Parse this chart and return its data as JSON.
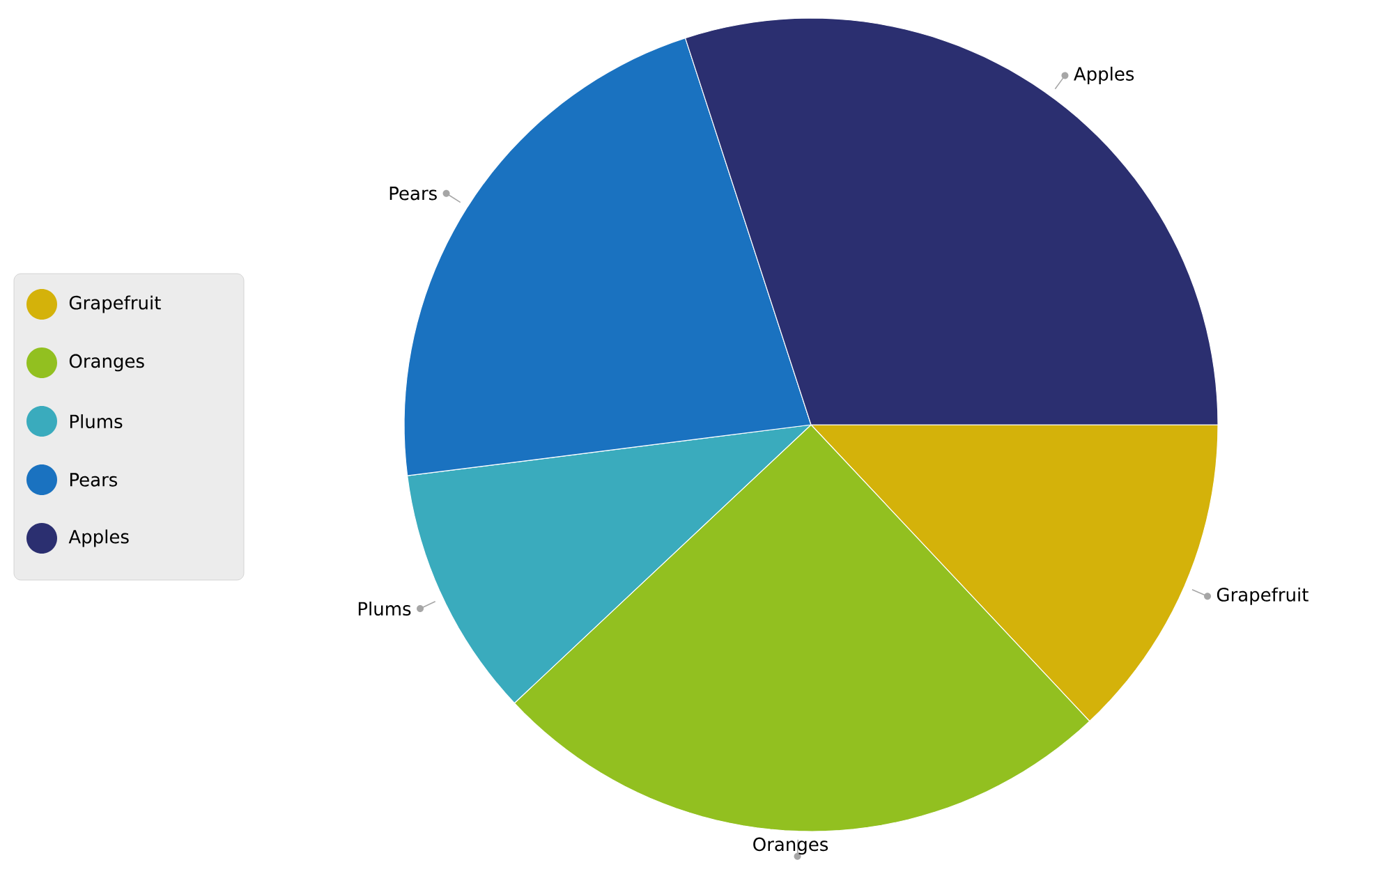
{
  "chart_data": {
    "type": "pie",
    "categories": [
      "Grapefruit",
      "Oranges",
      "Plums",
      "Pears",
      "Apples"
    ],
    "values": [
      13,
      25,
      10,
      22,
      30
    ],
    "colors": [
      "#d4b20a",
      "#92c020",
      "#3aabbd",
      "#1a72c0",
      "#2b2f70"
    ],
    "legend": "left"
  }
}
